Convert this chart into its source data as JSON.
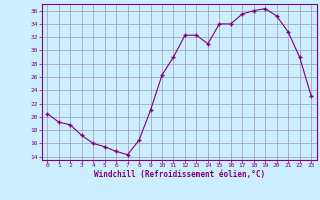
{
  "x": [
    0,
    1,
    2,
    3,
    4,
    5,
    6,
    7,
    8,
    9,
    10,
    11,
    12,
    13,
    14,
    15,
    16,
    17,
    18,
    19,
    20,
    21,
    22,
    23
  ],
  "y": [
    20.5,
    19.2,
    18.8,
    17.2,
    16.0,
    15.5,
    14.8,
    14.3,
    16.5,
    21.0,
    26.3,
    29.0,
    32.3,
    32.3,
    31.0,
    34.0,
    34.0,
    35.5,
    36.0,
    36.3,
    35.2,
    32.8,
    29.0,
    23.2
  ],
  "line_color": "#800080",
  "marker": "+",
  "xlabel": "Windchill (Refroidissement éolien,°C)",
  "ylabel": "",
  "xlim": [
    -0.5,
    23.5
  ],
  "ylim": [
    13.5,
    37
  ],
  "yticks": [
    14,
    16,
    18,
    20,
    22,
    24,
    26,
    28,
    30,
    32,
    34,
    36
  ],
  "xticks": [
    0,
    1,
    2,
    3,
    4,
    5,
    6,
    7,
    8,
    9,
    10,
    11,
    12,
    13,
    14,
    15,
    16,
    17,
    18,
    19,
    20,
    21,
    22,
    23
  ],
  "background_color": "#cceeff",
  "grid_color": "#9999bb",
  "xlabel_color": "#800080",
  "tick_color": "#800080",
  "spine_color": "#800080"
}
